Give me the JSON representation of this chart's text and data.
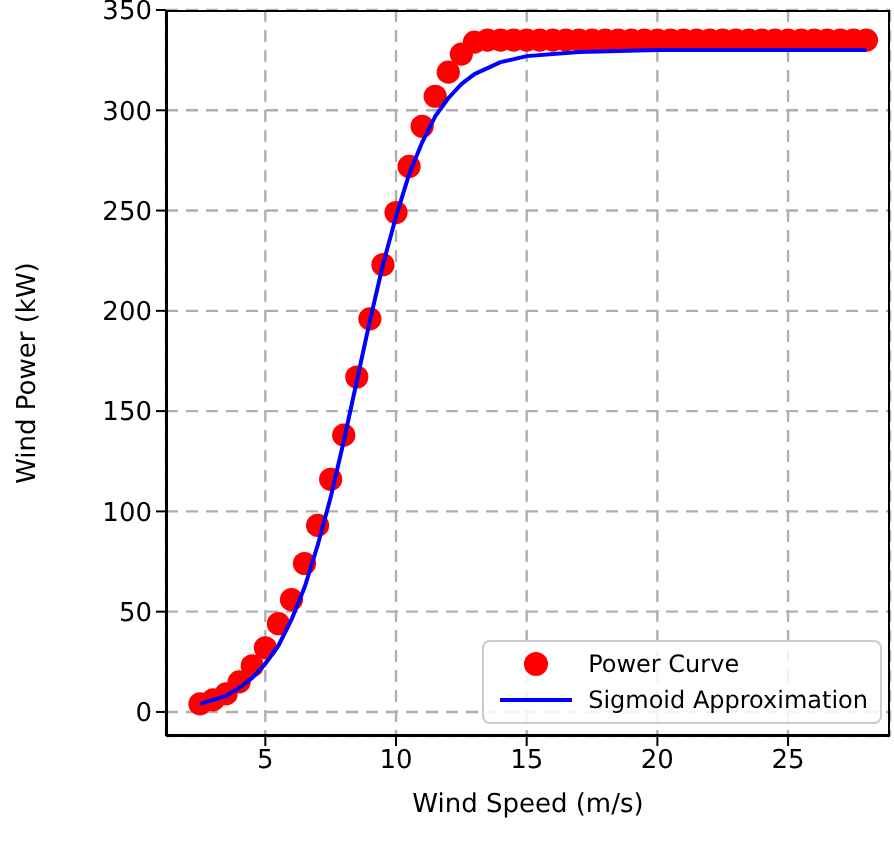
{
  "chart_data": {
    "type": "scatter",
    "xlabel": "Wind Speed (m/s)",
    "ylabel": "Wind Power (kW)",
    "xlim": [
      1.2,
      28.9
    ],
    "ylim": [
      -12,
      350
    ],
    "xticks": [
      5,
      10,
      15,
      20,
      25
    ],
    "yticks": [
      0,
      50,
      100,
      150,
      200,
      250,
      300,
      350
    ],
    "grid": true,
    "legend": "bottom right",
    "series": [
      {
        "name": "Power Curve",
        "marker": "circle",
        "color": "#ff0000",
        "x": [
          2.5,
          3,
          3.5,
          4,
          4.5,
          5,
          5.5,
          6,
          6.5,
          7,
          7.5,
          8,
          8.5,
          9,
          9.5,
          10,
          10.5,
          11,
          11.5,
          12,
          12.5,
          13,
          13.5,
          14,
          14.5,
          15,
          15.5,
          16,
          16.5,
          17,
          17.5,
          18,
          18.5,
          19,
          19.5,
          20,
          20.5,
          21,
          21.5,
          22,
          22.5,
          23,
          23.5,
          24,
          24.5,
          25,
          25.5,
          26,
          26.5,
          27,
          27.5,
          28
        ],
        "values": [
          4,
          6,
          9,
          15,
          23,
          32,
          44,
          56,
          74,
          93,
          116,
          138,
          167,
          196,
          223,
          249,
          272,
          292,
          307,
          319,
          328,
          334,
          335,
          335,
          335,
          335,
          335,
          335,
          335,
          335,
          335,
          335,
          335,
          335,
          335,
          335,
          335,
          335,
          335,
          335,
          335,
          335,
          335,
          335,
          335,
          335,
          335,
          335,
          335,
          335,
          335,
          335
        ]
      },
      {
        "name": "Sigmoid Approximation",
        "type": "line",
        "marker": "none",
        "line_style": "solid",
        "color": "#0000ff",
        "x": [
          2.5,
          3,
          3.5,
          4,
          4.5,
          5,
          5.5,
          6,
          6.5,
          7,
          7.5,
          8,
          8.5,
          9,
          9.5,
          10,
          10.5,
          11,
          11.5,
          12,
          12.5,
          13,
          14,
          15,
          17,
          20,
          24,
          28
        ],
        "values": [
          4,
          6,
          8,
          12,
          17,
          24,
          33,
          46,
          62,
          83,
          107,
          135,
          165,
          195,
          223,
          247,
          268,
          284,
          297,
          306,
          313,
          318,
          324,
          327,
          329,
          330,
          330,
          330
        ]
      }
    ]
  }
}
